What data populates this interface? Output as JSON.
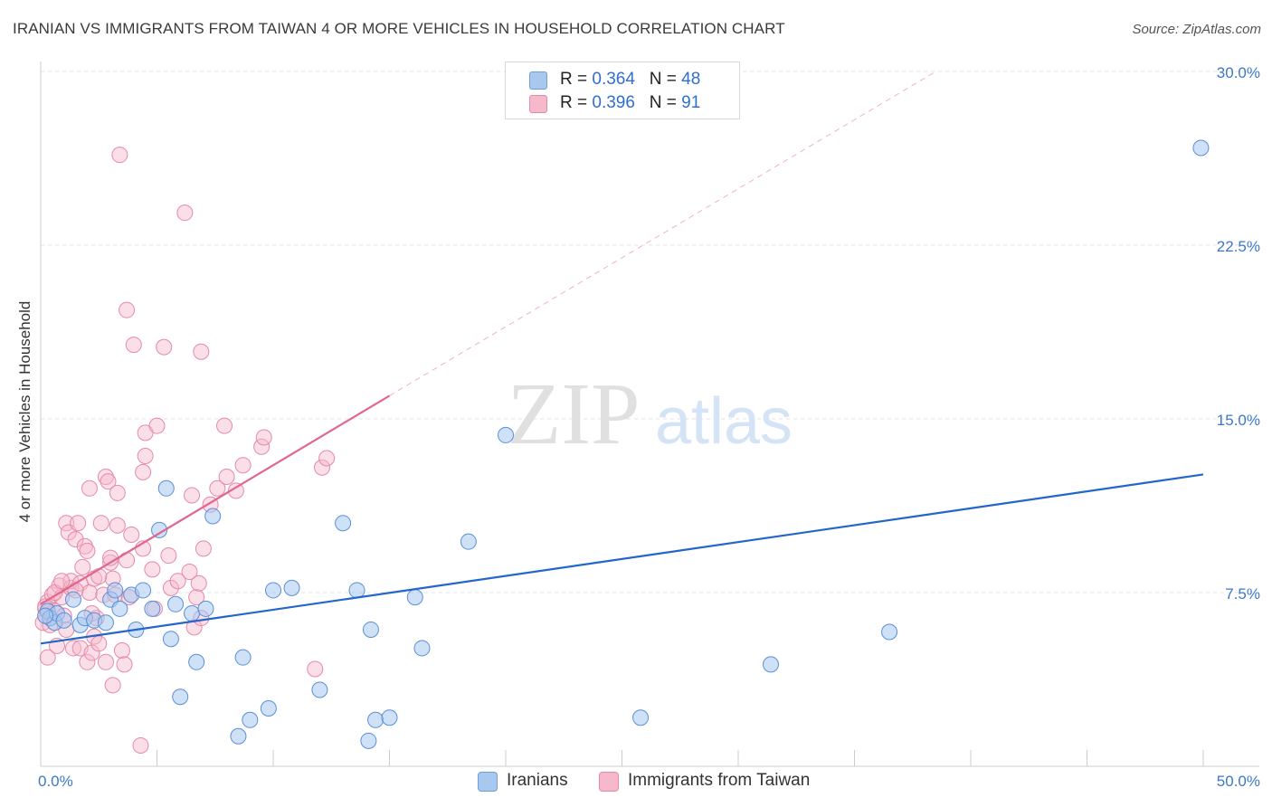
{
  "header": {
    "title": "IRANIAN VS IMMIGRANTS FROM TAIWAN 4 OR MORE VEHICLES IN HOUSEHOLD CORRELATION CHART",
    "source": "Source: ZipAtlas.com"
  },
  "watermark": {
    "zip": "ZIP",
    "atlas": "atlas"
  },
  "legend": {
    "iranians": {
      "r_label": "R = ",
      "r_value": "0.364",
      "n_label": "N = ",
      "n_value": "48",
      "color": "#a8c8f0"
    },
    "taiwan": {
      "r_label": "R = ",
      "r_value": "0.396",
      "n_label": "N = ",
      "n_value": "91",
      "color": "#f6b8cb"
    }
  },
  "bottom_legend": {
    "iranians": "Iranians",
    "taiwan": "Immigrants from Taiwan"
  },
  "colors": {
    "iranians_fill": "#a8c8f0",
    "iranians_stroke": "#5b8fd6",
    "iranians_line": "#2266cc",
    "taiwan_fill": "#f6b8cb",
    "taiwan_stroke": "#e58aa6",
    "taiwan_line": "#e06690",
    "tick_text": "#3d78c8",
    "grid": "#e3e3e3"
  },
  "chart_data": {
    "type": "scatter",
    "title": "IRANIAN VS IMMIGRANTS FROM TAIWAN 4 OR MORE VEHICLES IN HOUSEHOLD CORRELATION CHART",
    "xlabel": "",
    "ylabel": "4 or more Vehicles in Household",
    "xlim": [
      0,
      50
    ],
    "ylim": [
      0,
      30
    ],
    "x_tick_labels": [
      "0.0%",
      "50.0%"
    ],
    "y_ticks": [
      7.5,
      15.0,
      22.5,
      30.0
    ],
    "y_tick_labels": [
      "7.5%",
      "15.0%",
      "22.5%",
      "30.0%"
    ],
    "grid": "horizontal dashed",
    "legend_position": "top-center",
    "series": [
      {
        "name": "Iranians",
        "r": 0.364,
        "n": 48,
        "trend": {
          "x": [
            0,
            50
          ],
          "y": [
            5.3,
            12.6
          ]
        },
        "points": [
          [
            0.3,
            6.7
          ],
          [
            0.4,
            6.4
          ],
          [
            0.6,
            6.2
          ],
          [
            0.7,
            6.6
          ],
          [
            1.0,
            6.3
          ],
          [
            1.4,
            7.2
          ],
          [
            1.7,
            6.1
          ],
          [
            1.9,
            6.4
          ],
          [
            2.3,
            6.3
          ],
          [
            2.8,
            6.2
          ],
          [
            3.0,
            7.2
          ],
          [
            3.2,
            7.6
          ],
          [
            3.4,
            6.8
          ],
          [
            3.9,
            7.4
          ],
          [
            4.1,
            5.9
          ],
          [
            4.4,
            7.6
          ],
          [
            4.8,
            6.8
          ],
          [
            5.1,
            10.2
          ],
          [
            5.4,
            12.0
          ],
          [
            5.6,
            5.5
          ],
          [
            5.8,
            7.0
          ],
          [
            6.0,
            3.0
          ],
          [
            6.5,
            6.6
          ],
          [
            6.7,
            4.5
          ],
          [
            7.1,
            6.8
          ],
          [
            7.4,
            10.8
          ],
          [
            8.5,
            1.3
          ],
          [
            8.7,
            4.7
          ],
          [
            9.0,
            2.0
          ],
          [
            9.8,
            2.5
          ],
          [
            10.0,
            7.6
          ],
          [
            10.8,
            7.7
          ],
          [
            12.0,
            3.3
          ],
          [
            13.0,
            10.5
          ],
          [
            13.6,
            7.6
          ],
          [
            14.1,
            1.1
          ],
          [
            14.2,
            5.9
          ],
          [
            14.4,
            2.0
          ],
          [
            15.0,
            2.1
          ],
          [
            16.1,
            7.3
          ],
          [
            16.4,
            5.1
          ],
          [
            18.4,
            9.7
          ],
          [
            20.0,
            14.3
          ],
          [
            25.8,
            2.1
          ],
          [
            31.4,
            4.4
          ],
          [
            36.5,
            5.8
          ],
          [
            49.9,
            26.7
          ],
          [
            0.2,
            6.5
          ]
        ]
      },
      {
        "name": "Immigrants from Taiwan",
        "r": 0.396,
        "n": 91,
        "trend": {
          "x": [
            0,
            15
          ],
          "y": [
            7.0,
            16.0
          ],
          "dashed_extension": {
            "x": [
              15,
              38.5
            ],
            "y": [
              16.0,
              30.0
            ]
          }
        },
        "points": [
          [
            0.1,
            6.2
          ],
          [
            0.2,
            6.8
          ],
          [
            0.3,
            4.7
          ],
          [
            0.3,
            7.1
          ],
          [
            0.4,
            6.4
          ],
          [
            0.5,
            7.4
          ],
          [
            0.6,
            6.7
          ],
          [
            0.7,
            5.2
          ],
          [
            0.8,
            7.8
          ],
          [
            0.9,
            7.3
          ],
          [
            1.0,
            6.5
          ],
          [
            1.1,
            5.9
          ],
          [
            1.1,
            10.5
          ],
          [
            1.2,
            10.1
          ],
          [
            1.3,
            7.7
          ],
          [
            1.3,
            8.0
          ],
          [
            1.4,
            5.1
          ],
          [
            1.5,
            9.8
          ],
          [
            1.6,
            10.5
          ],
          [
            1.7,
            7.9
          ],
          [
            1.7,
            5.1
          ],
          [
            1.8,
            8.6
          ],
          [
            1.9,
            9.5
          ],
          [
            2.0,
            4.5
          ],
          [
            2.0,
            9.3
          ],
          [
            2.1,
            12.0
          ],
          [
            2.1,
            7.5
          ],
          [
            2.2,
            4.9
          ],
          [
            2.3,
            8.1
          ],
          [
            2.3,
            5.6
          ],
          [
            2.4,
            6.4
          ],
          [
            2.5,
            5.3
          ],
          [
            2.6,
            10.5
          ],
          [
            2.7,
            7.4
          ],
          [
            2.8,
            4.5
          ],
          [
            2.8,
            12.5
          ],
          [
            2.9,
            12.3
          ],
          [
            3.0,
            8.8
          ],
          [
            3.0,
            9.0
          ],
          [
            3.1,
            8.1
          ],
          [
            3.1,
            3.5
          ],
          [
            3.2,
            7.4
          ],
          [
            3.3,
            11.8
          ],
          [
            3.3,
            10.4
          ],
          [
            3.4,
            26.4
          ],
          [
            3.5,
            5.0
          ],
          [
            3.6,
            4.4
          ],
          [
            3.7,
            19.7
          ],
          [
            3.8,
            7.3
          ],
          [
            3.9,
            10.0
          ],
          [
            4.0,
            18.2
          ],
          [
            4.3,
            0.9
          ],
          [
            4.4,
            9.4
          ],
          [
            4.4,
            12.7
          ],
          [
            4.5,
            13.4
          ],
          [
            4.5,
            14.4
          ],
          [
            4.8,
            8.5
          ],
          [
            5.0,
            14.7
          ],
          [
            5.3,
            18.1
          ],
          [
            5.6,
            7.7
          ],
          [
            5.9,
            8.0
          ],
          [
            6.2,
            23.9
          ],
          [
            6.4,
            8.4
          ],
          [
            6.5,
            11.7
          ],
          [
            6.6,
            6.0
          ],
          [
            6.7,
            7.3
          ],
          [
            6.8,
            7.9
          ],
          [
            6.9,
            6.4
          ],
          [
            6.9,
            17.9
          ],
          [
            7.0,
            9.4
          ],
          [
            7.3,
            11.3
          ],
          [
            7.6,
            12.0
          ],
          [
            7.9,
            14.7
          ],
          [
            8.0,
            12.5
          ],
          [
            8.4,
            11.9
          ],
          [
            8.7,
            13.0
          ],
          [
            9.5,
            13.8
          ],
          [
            9.6,
            14.2
          ],
          [
            11.8,
            4.2
          ],
          [
            12.1,
            12.9
          ],
          [
            12.3,
            13.3
          ],
          [
            0.4,
            6.1
          ],
          [
            0.6,
            7.5
          ],
          [
            0.9,
            8.0
          ],
          [
            1.5,
            7.6
          ],
          [
            2.2,
            6.6
          ],
          [
            2.5,
            8.2
          ],
          [
            3.7,
            8.9
          ],
          [
            4.9,
            6.8
          ],
          [
            5.5,
            9.1
          ],
          [
            0.2,
            6.9
          ]
        ]
      }
    ]
  }
}
